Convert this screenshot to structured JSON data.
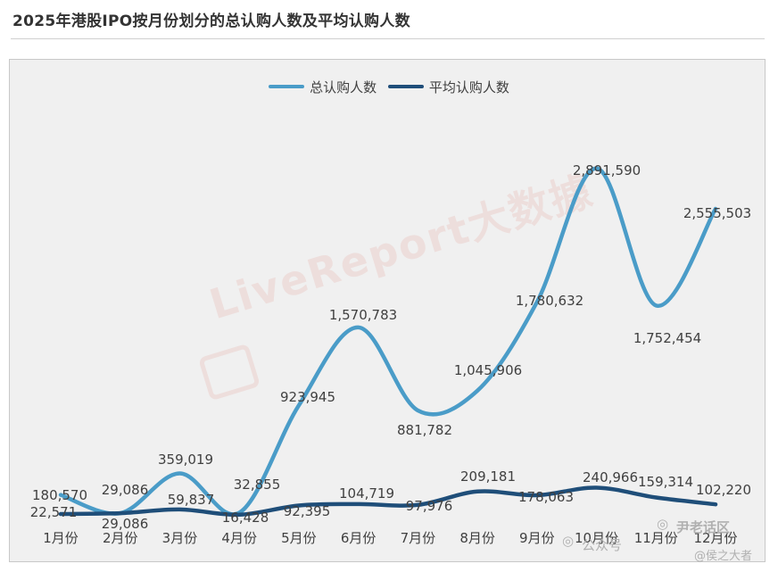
{
  "title": "2025年港股IPO按月份划分的总认购人数及平均认购人数",
  "watermark": "LiveReport大数據",
  "footer": {
    "platform_label": "公众号",
    "account": "尹老话区",
    "handle": "@侯之大者"
  },
  "colors": {
    "total": "#4a9cc8",
    "average": "#1f4e79"
  },
  "chart_data": {
    "type": "line",
    "title": "2025年港股IPO按月份划分的总认购人数及平均认购人数",
    "categories": [
      "1月份",
      "2月份",
      "3月份",
      "4月份",
      "5月份",
      "6月份",
      "7月份",
      "8月份",
      "9月份",
      "10月份",
      "11月份",
      "12月份"
    ],
    "series": [
      {
        "name": "总认购人数",
        "values": [
          180570,
          29086,
          359019,
          32855,
          923945,
          1570783,
          881782,
          1045906,
          1780632,
          2891590,
          1752454,
          2555503
        ]
      },
      {
        "name": "平均认购人数",
        "values": [
          22571,
          29086,
          59837,
          16428,
          92395,
          104719,
          97976,
          209181,
          178063,
          240966,
          159314,
          102220
        ]
      }
    ],
    "ylim": [
      0,
      3200000
    ],
    "grid": false,
    "legend_position": "top",
    "smooth": true
  }
}
